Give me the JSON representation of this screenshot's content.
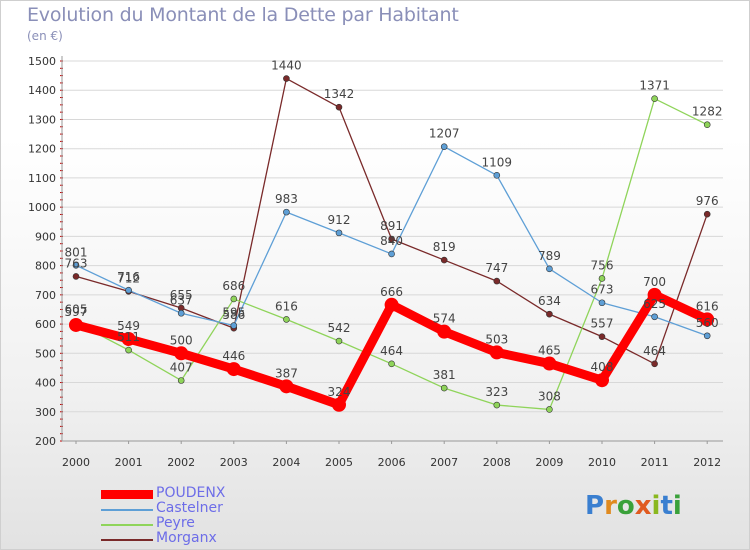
{
  "title": "Evolution du Montant de la Dette par Habitant",
  "subtitle": "(en €)",
  "logo_text": [
    "P",
    "r",
    "o",
    "x",
    "i",
    "t",
    "i"
  ],
  "chart_data": {
    "type": "line",
    "title": "Evolution du Montant de la Dette par Habitant",
    "subtitle": "(en €)",
    "xlabel": "",
    "ylabel": "",
    "x": [
      "2000",
      "2001",
      "2002",
      "2003",
      "2004",
      "2005",
      "2006",
      "2007",
      "2008",
      "2009",
      "2010",
      "2011",
      "2012"
    ],
    "ylim": [
      200,
      1500
    ],
    "yticks": [
      200,
      300,
      400,
      500,
      600,
      700,
      800,
      900,
      1000,
      1100,
      1200,
      1300,
      1400,
      1500
    ],
    "grid": true,
    "legend_position": "bottom-left",
    "series": [
      {
        "name": "POUDENX",
        "color": "#ff0000",
        "values": [
          597,
          549,
          500,
          446,
          387,
          324,
          666,
          574,
          503,
          465,
          408,
          700,
          616
        ],
        "labels": [
          "597",
          "549",
          "500",
          "446",
          "387",
          "324",
          "666",
          "574",
          "503",
          "465",
          "408",
          "700",
          "616"
        ]
      },
      {
        "name": "Castelner",
        "color": "#5e9fd6",
        "values": [
          801,
          716,
          637,
          595,
          983,
          912,
          840,
          1207,
          1109,
          789,
          673,
          625,
          560
        ],
        "labels": [
          "801",
          "716",
          "637",
          "595",
          "983",
          "912",
          "840",
          "1207",
          "1109",
          "789",
          "673",
          "625",
          "560"
        ]
      },
      {
        "name": "Peyre",
        "color": "#8fd45a",
        "values": [
          605,
          511,
          407,
          686,
          616,
          542,
          464,
          381,
          323,
          308,
          756,
          1371,
          1282
        ],
        "labels": [
          "605",
          "511",
          "407",
          "686",
          "616",
          "542",
          "464",
          "381",
          "323",
          "308",
          "756",
          "1371",
          "1282"
        ]
      },
      {
        "name": "Morganx",
        "color": "#7a2a2a",
        "values": [
          763,
          712,
          655,
          586,
          1440,
          1342,
          891,
          819,
          747,
          634,
          557,
          464,
          976
        ],
        "labels": [
          "763",
          "712",
          "655",
          "586",
          "1440",
          "1342",
          "891",
          "819",
          "747",
          "634",
          "557",
          "464",
          "976"
        ]
      }
    ]
  }
}
